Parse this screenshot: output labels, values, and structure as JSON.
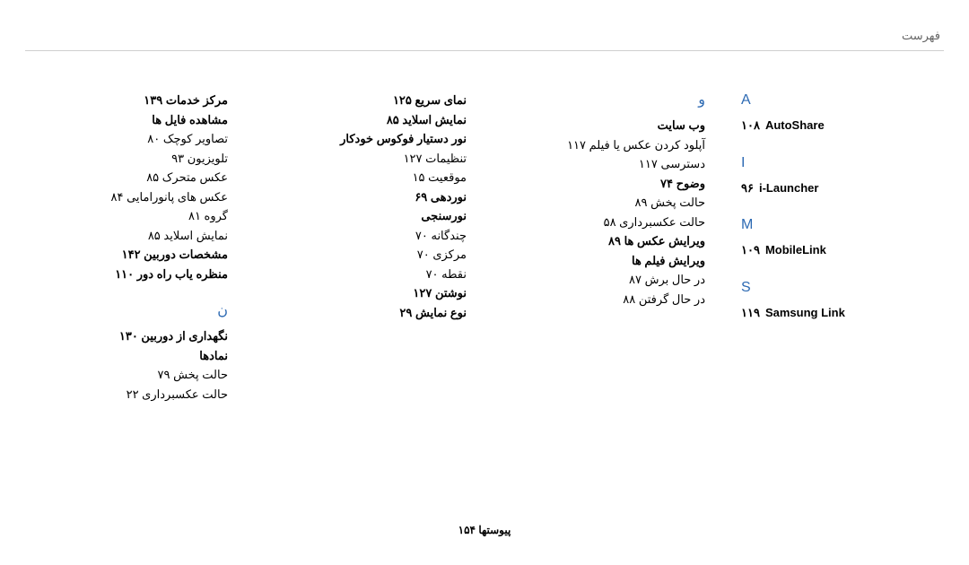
{
  "header": {
    "title": "فهرست"
  },
  "footer": {
    "label": "پیوستها  ۱۵۴"
  },
  "col1": {
    "rows": [
      {
        "text": "مرکز خدمات  ۱۳۹",
        "bold": true
      },
      {
        "text": "مشاهده فایل ها",
        "bold": true
      },
      {
        "text": "تصاویر کوچک  ۸۰"
      },
      {
        "text": "تلویزیون  ۹۳"
      },
      {
        "text": "عکس متحرک  ۸۵"
      },
      {
        "text": "عکس های پانورامایی  ۸۴"
      },
      {
        "text": "گروه  ۸۱"
      },
      {
        "text": "نمایش اسلاید  ۸۵"
      },
      {
        "text": "مشخصات دوربین  ۱۴۲",
        "bold": true
      },
      {
        "text": "منظره یاب راه دور  ۱۱۰",
        "bold": true
      }
    ],
    "letter": "ن",
    "rows2": [
      {
        "text": "نگهداری از دوربین  ۱۳۰",
        "bold": true
      },
      {
        "text": "نمادها",
        "bold": true
      },
      {
        "text": "حالت پخش  ۷۹"
      },
      {
        "text": "حالت عکسبرداری  ۲۲"
      }
    ]
  },
  "col2": {
    "rows": [
      {
        "text": "نمای سریع  ۱۲۵",
        "bold": true
      },
      {
        "text": "نمایش اسلاید  ۸۵",
        "bold": true
      },
      {
        "text": "نور دستیار فوکوس خودکار",
        "bold": true
      },
      {
        "text": "تنظیمات  ۱۲۷"
      },
      {
        "text": "موقعیت  ۱۵"
      },
      {
        "text": "نوردهی  ۶۹",
        "bold": true
      },
      {
        "text": "نورسنجی",
        "bold": true
      },
      {
        "text": "چندگانه  ۷۰"
      },
      {
        "text": "مرکزی  ۷۰"
      },
      {
        "text": "نقطه  ۷۰"
      },
      {
        "text": "نوشتن  ۱۲۷",
        "bold": true
      },
      {
        "text": "نوع نمایش  ۲۹",
        "bold": true
      }
    ]
  },
  "col3": {
    "letter": "و",
    "rows": [
      {
        "text": "وب سایت",
        "bold": true
      },
      {
        "text": "آپلود کردن عکس یا فیلم  ۱۱۷"
      },
      {
        "text": "دسترسی  ۱۱۷"
      },
      {
        "text": "وضوح  ۷۴",
        "bold": true
      },
      {
        "text": "حالت پخش  ۸۹"
      },
      {
        "text": "حالت عکسبرداری  ۵۸"
      },
      {
        "text": "ویرایش عکس ها  ۸۹",
        "bold": true
      },
      {
        "text": "ویرایش فیلم ها",
        "bold": true
      },
      {
        "text": "در حال برش  ۸۷"
      },
      {
        "text": "در حال گرفتن  ۸۸"
      }
    ]
  },
  "col4": {
    "sections": [
      {
        "letter": "A",
        "label": "AutoShare",
        "num": "۱۰۸"
      },
      {
        "letter": "I",
        "label": "i-Launcher",
        "num": "۹۶"
      },
      {
        "letter": "M",
        "label": "MobileLink",
        "num": "۱۰۹"
      },
      {
        "letter": "S",
        "label": "Samsung Link",
        "num": "۱۱۹"
      }
    ]
  }
}
